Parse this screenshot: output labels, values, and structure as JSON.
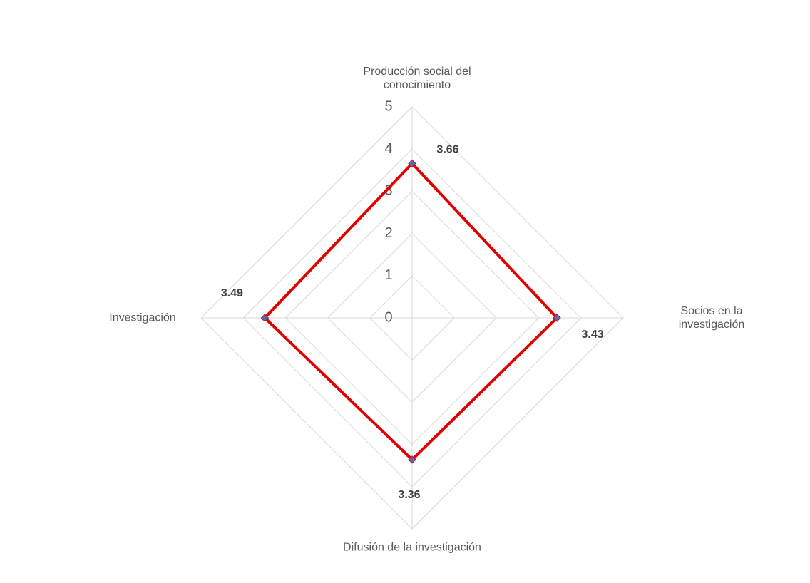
{
  "chart_data": {
    "type": "radar",
    "categories": [
      "Producción social del conocimiento",
      "Socios en la investigación",
      "Difusión de la investigación",
      "Investigación"
    ],
    "values": [
      3.66,
      3.43,
      3.36,
      3.49
    ],
    "color": "#e00000",
    "marker_color": "#4472c4",
    "rlim": [
      0,
      5
    ],
    "rticks": [
      0,
      1,
      2,
      3,
      4,
      5
    ],
    "grid": true
  }
}
